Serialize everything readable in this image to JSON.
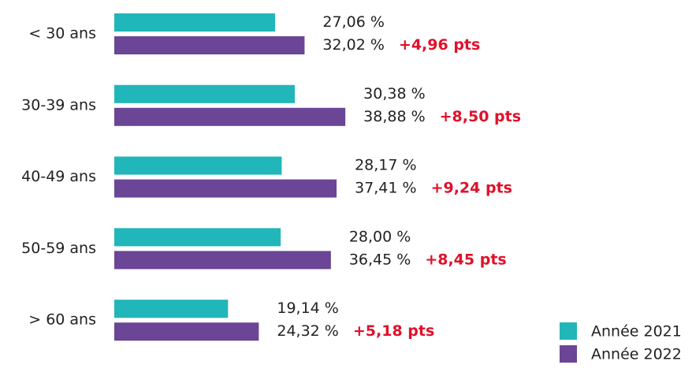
{
  "chart_data": {
    "type": "hbar",
    "categories": [
      "< 30 ans",
      "30-39 ans",
      "40-49 ans",
      "50-59 ans",
      "> 60 ans"
    ],
    "series": [
      {
        "name": "Année 2021",
        "color": "#21b6b9",
        "values": [
          27.06,
          30.38,
          28.17,
          28.0,
          19.14
        ],
        "value_labels": [
          "27,06 %",
          "30,38 %",
          "28,17 %",
          "28,00 %",
          "19,14 %"
        ]
      },
      {
        "name": "Année 2022",
        "color": "#6b4596",
        "values": [
          32.02,
          38.88,
          37.41,
          36.45,
          24.32
        ],
        "value_labels": [
          "32,02 %",
          "38,88 %",
          "37,41 %",
          "36,45 %",
          "24,32 %"
        ]
      }
    ],
    "annotations": [
      "+4,96 pts",
      "+8,50 pts",
      "+9,24 pts",
      "+8,45 pts",
      "+5,18 pts"
    ],
    "annotation_color": "#e0112b",
    "legend": "bottom-right"
  }
}
